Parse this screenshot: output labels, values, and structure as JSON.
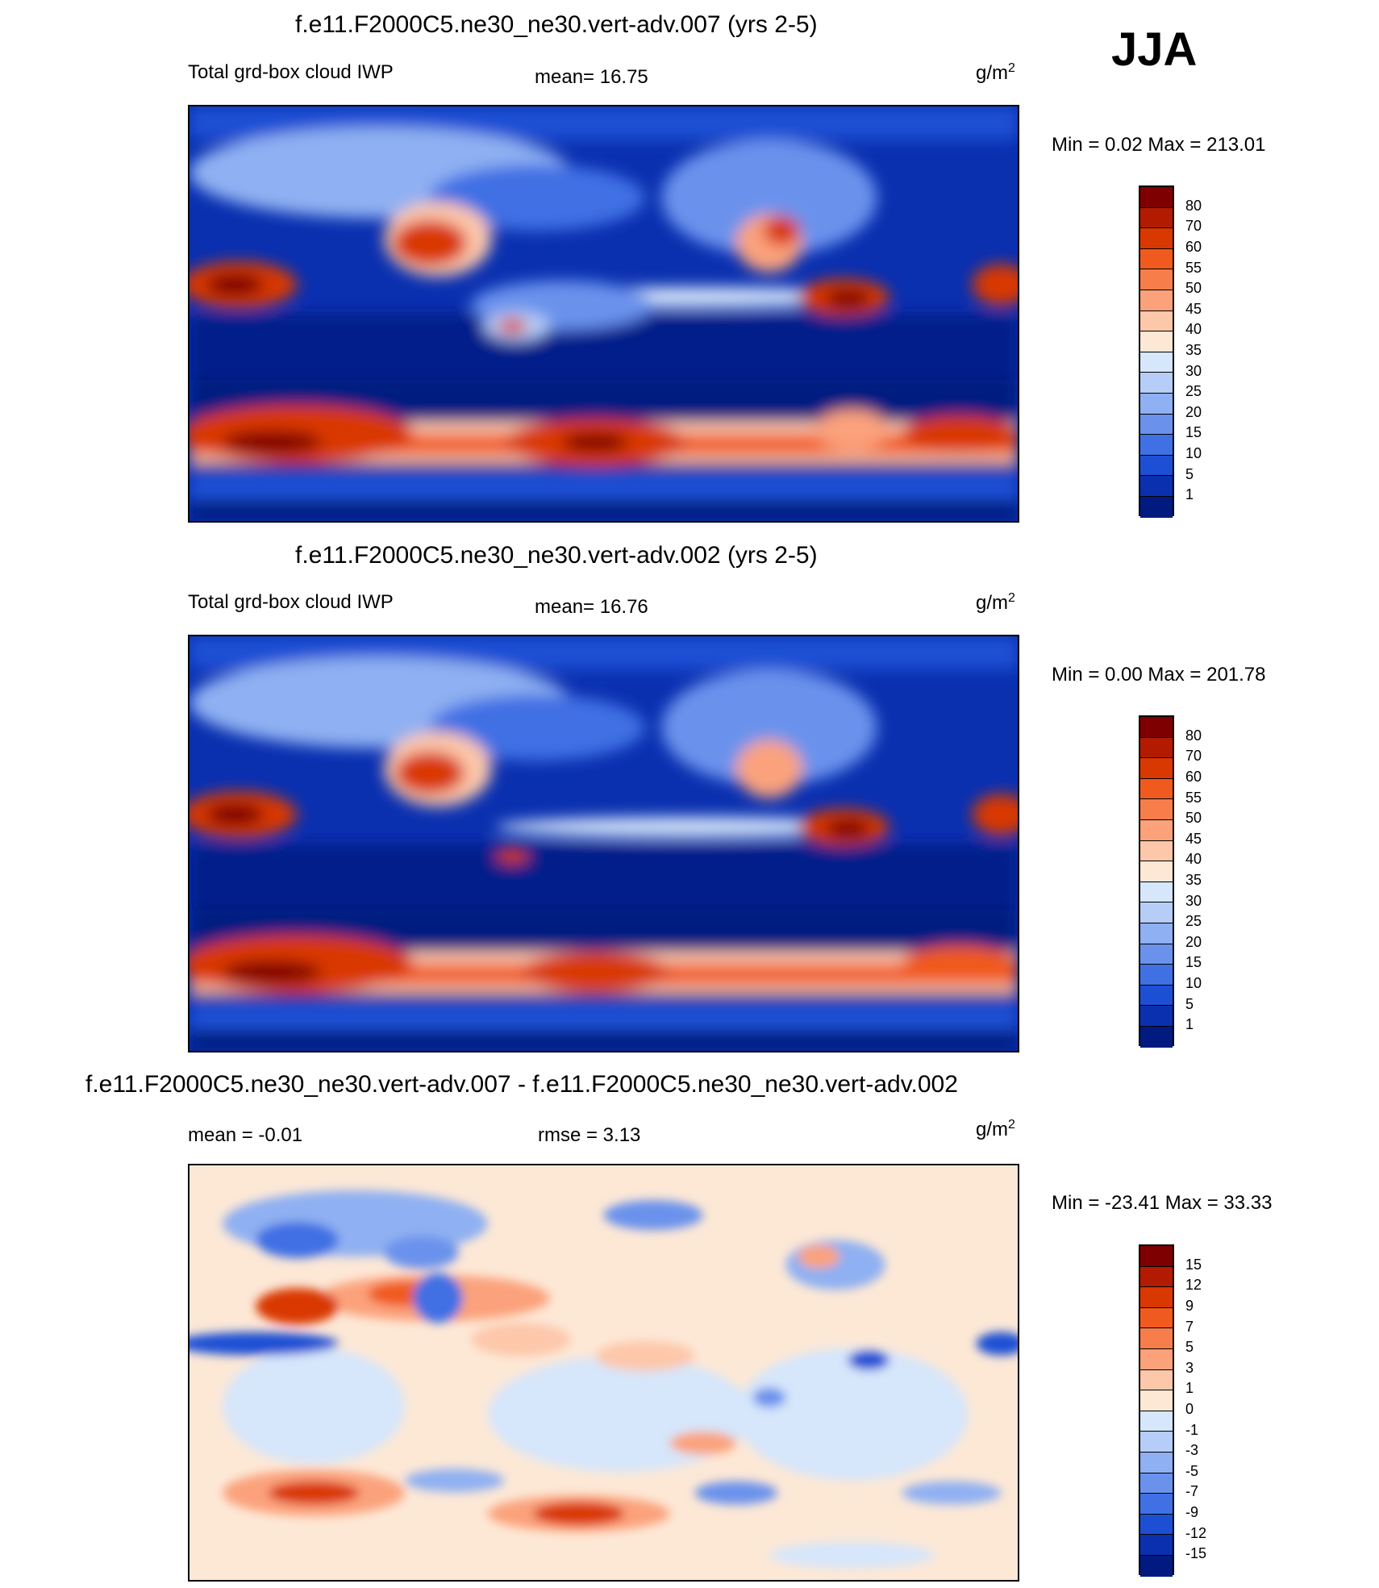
{
  "season": "JJA",
  "panels": [
    {
      "title": "f.e11.F2000C5.ne30_ne30.vert-adv.007 (yrs 2-5)",
      "left_label": "Total grd-box cloud IWP",
      "center_label": "mean=  16.75",
      "units": "g/m",
      "units_sup": "2",
      "minmax": "Min =   0.02 Max = 213.01",
      "colorbar_labels": [
        "80",
        "70",
        "60",
        "55",
        "50",
        "45",
        "40",
        "35",
        "30",
        "25",
        "20",
        "15",
        "10",
        "5",
        "1"
      ],
      "colorbar_colors": [
        "#7f0000",
        "#b31b00",
        "#d93800",
        "#f05a1e",
        "#f77d4b",
        "#fba27b",
        "#fdc7aa",
        "#fde8d6",
        "#d6e6fb",
        "#b6cdf7",
        "#8fb0f2",
        "#6a92ec",
        "#3f70e4",
        "#1c4fd4",
        "#0a30b0",
        "#001a80"
      ]
    },
    {
      "title": "f.e11.F2000C5.ne30_ne30.vert-adv.002 (yrs 2-5)",
      "left_label": "Total grd-box cloud IWP",
      "center_label": "mean=  16.76",
      "units": "g/m",
      "units_sup": "2",
      "minmax": "Min =   0.00 Max = 201.78",
      "colorbar_labels": [
        "80",
        "70",
        "60",
        "55",
        "50",
        "45",
        "40",
        "35",
        "30",
        "25",
        "20",
        "15",
        "10",
        "5",
        "1"
      ],
      "colorbar_colors": [
        "#7f0000",
        "#b31b00",
        "#d93800",
        "#f05a1e",
        "#f77d4b",
        "#fba27b",
        "#fdc7aa",
        "#fde8d6",
        "#d6e6fb",
        "#b6cdf7",
        "#8fb0f2",
        "#6a92ec",
        "#3f70e4",
        "#1c4fd4",
        "#0a30b0",
        "#001a80"
      ]
    },
    {
      "title": "f.e11.F2000C5.ne30_ne30.vert-adv.007 - f.e11.F2000C5.ne30_ne30.vert-adv.002",
      "left_label": "mean =  -0.01",
      "center_label": "rmse =   3.13",
      "units": "g/m",
      "units_sup": "2",
      "minmax": "Min = -23.41 Max =  33.33",
      "colorbar_labels": [
        "15",
        "12",
        "9",
        "7",
        "5",
        "3",
        "1",
        "0",
        "-1",
        "-3",
        "-5",
        "-7",
        "-9",
        "-12",
        "-15"
      ],
      "colorbar_colors": [
        "#7f0000",
        "#b31b00",
        "#d93800",
        "#f05a1e",
        "#f77d4b",
        "#fba27b",
        "#fdc7aa",
        "#fde8d6",
        "#d6e6fb",
        "#b6cdf7",
        "#8fb0f2",
        "#6a92ec",
        "#3f70e4",
        "#1c4fd4",
        "#0a30b0",
        "#001a80"
      ]
    }
  ]
}
